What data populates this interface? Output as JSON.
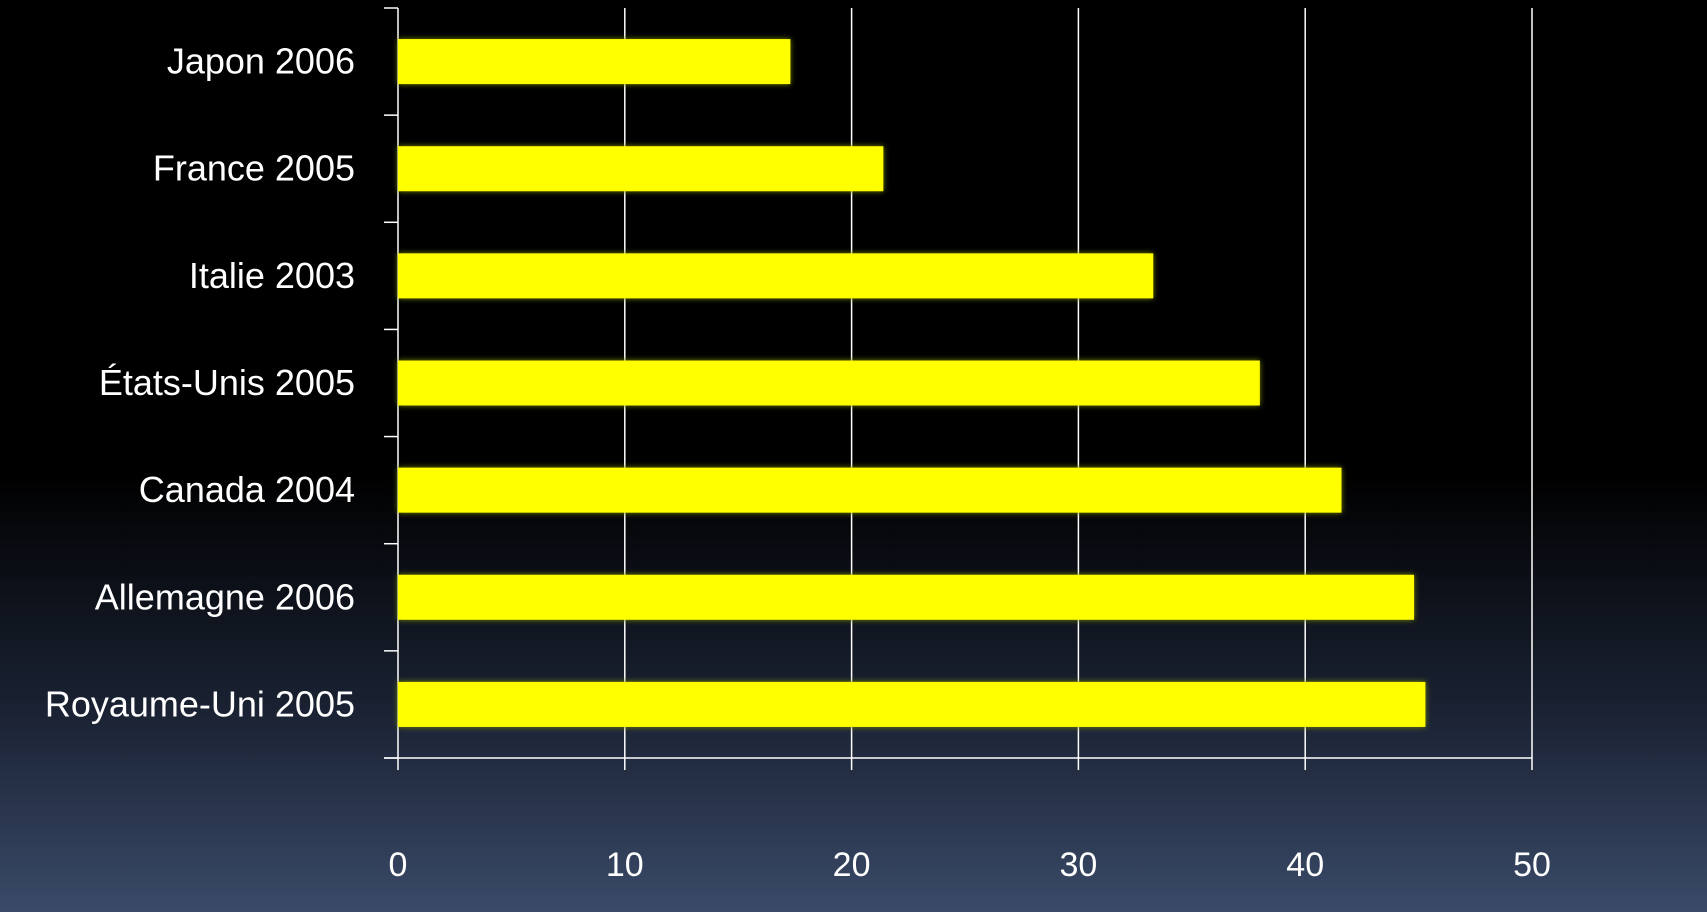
{
  "chart_data": {
    "type": "bar",
    "orientation": "horizontal",
    "categories": [
      "Japon 2006",
      "France 2005",
      "Italie 2003",
      "États-Unis 2005",
      "Canada 2004",
      "Allemagne 2006",
      "Royaume-Uni 2005"
    ],
    "values": [
      17.3,
      21.4,
      33.3,
      38.0,
      41.6,
      44.8,
      45.3
    ],
    "xlim": [
      0,
      50
    ],
    "xticks": [
      "0",
      "10",
      "20",
      "30",
      "40",
      "50"
    ],
    "grid": "vertical",
    "bar_color": "#ffff00",
    "glow_color": "#7a8a00",
    "title": "",
    "xlabel": "",
    "ylabel": ""
  }
}
